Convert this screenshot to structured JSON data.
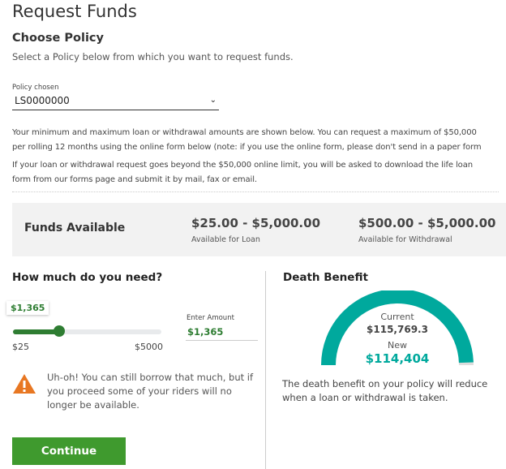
{
  "title": "Request Funds",
  "choose_policy": {
    "heading": "Choose Policy",
    "subtitle": "Select a Policy below from which you want to request funds.",
    "label": "Policy chosen",
    "value": "LS0000000"
  },
  "info": {
    "line1": "Your minimum and maximum loan or withdrawal amounts are shown below. You can request a maximum of $50,000",
    "line2": "per rolling 12 months using the online form below (note: if you use the online form, please don't send in a paper form",
    "line3": "If your loan or withdrawal request goes beyond the $50,000 online limit, you will be asked to download the life loan",
    "line4": "form from our forms page and submit it by mail, fax or email."
  },
  "funds": {
    "heading": "Funds Available",
    "loan_range": "$25.00 - $5,000.00",
    "loan_label": "Available for Loan",
    "withdrawal_range": "$500.00 - $5,000.00",
    "withdrawal_label": "Available for Withdrawal"
  },
  "amount": {
    "heading": "How much do you need?",
    "tooltip": "$1,365",
    "min": "$25",
    "max": "$5000",
    "enter_label": "Enter Amount",
    "enter_value": "$1,365",
    "slider_value": 1365,
    "slider_min": 25,
    "slider_max": 5000,
    "warning": "Uh-oh! You can still borrow that much, but if you proceed some of your riders will no longer be available.",
    "continue": "Continue"
  },
  "death_benefit": {
    "heading": "Death Benefit",
    "current_label": "Current",
    "current_value": "$115,769.3",
    "new_label": "New",
    "new_value": "$114,404",
    "gauge_fraction": 0.988,
    "note": "The death benefit on your policy will reduce when a loan or withdrawal is taken."
  },
  "colors": {
    "accent_green": "#2e7d32",
    "button_green": "#3f9a2e",
    "teal": "#00a99d",
    "warning_orange": "#e87722"
  }
}
